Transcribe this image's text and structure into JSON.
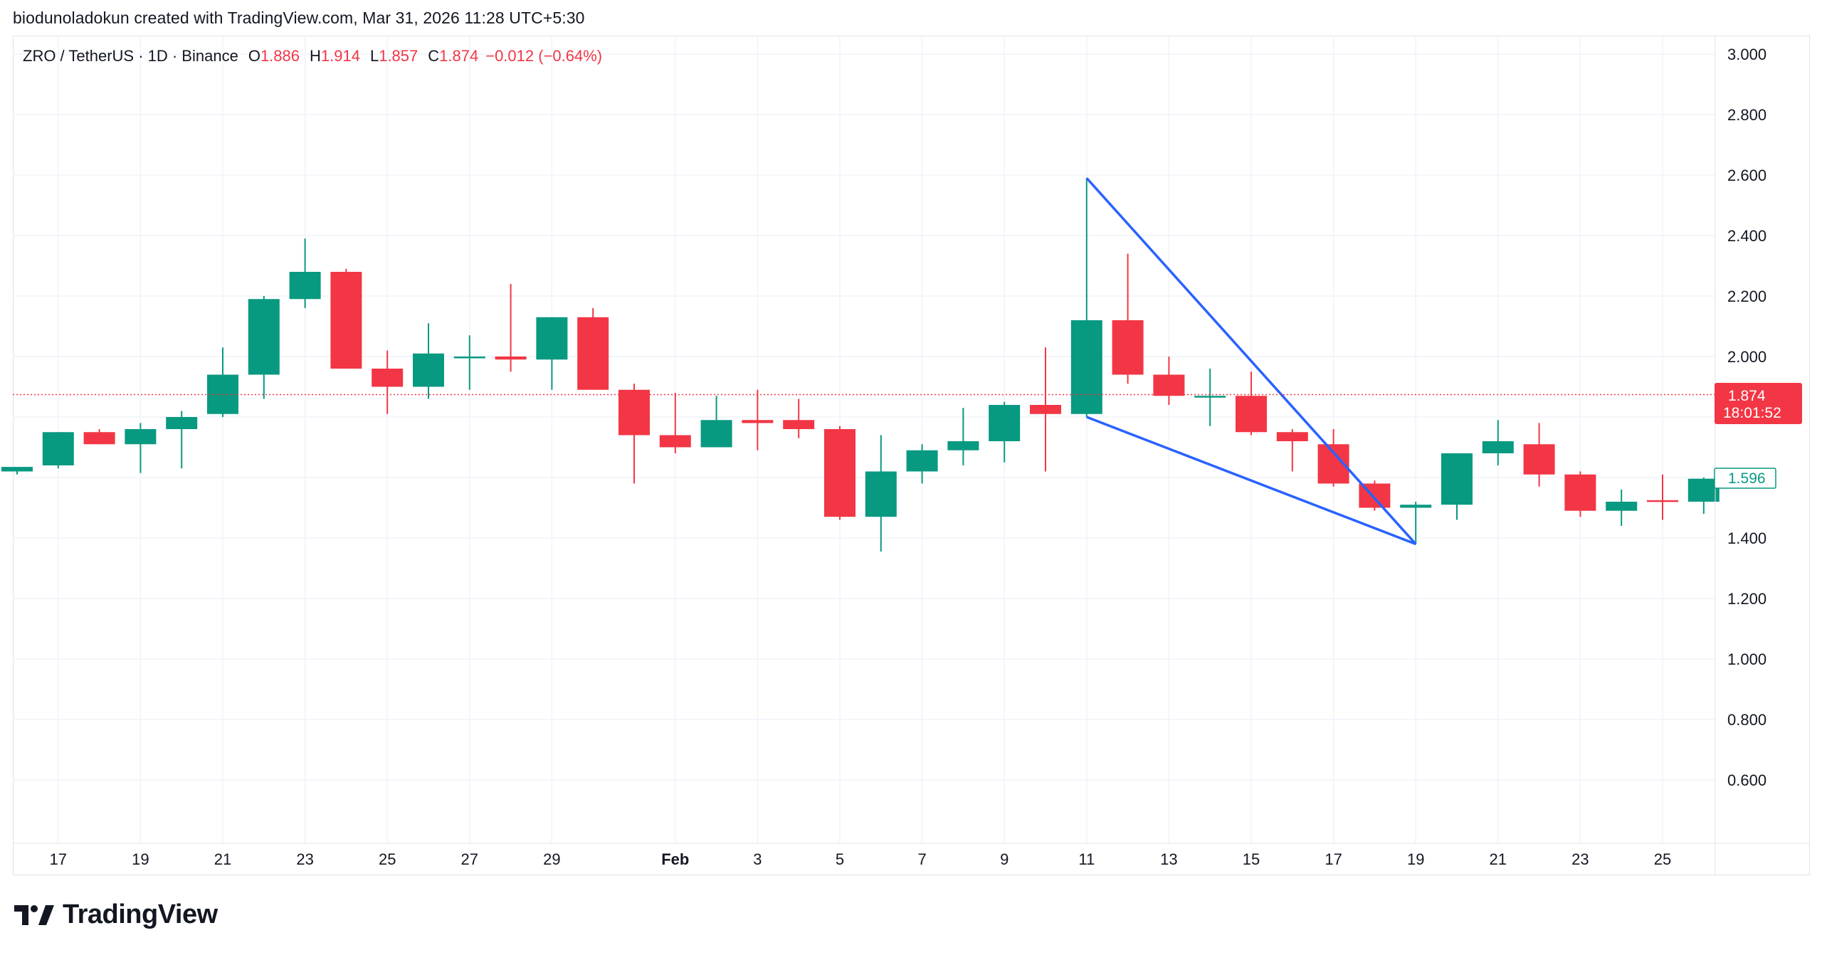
{
  "credit": "biodunoladokun created with TradingView.com, Mar 31, 2026 11:28 UTC+5:30",
  "legend": {
    "symbol": "ZRO / TetherUS · 1D · Binance",
    "open_label": "O",
    "open": "1.886",
    "high_label": "H",
    "high": "1.914",
    "low_label": "L",
    "low": "1.857",
    "close_label": "C",
    "close": "1.874",
    "change": "−0.012 (−0.64%)"
  },
  "price_tag": {
    "current": "1.874",
    "countdown": "18:01:52",
    "marker": "1.596"
  },
  "brand": {
    "name": "TradingView",
    "logo_icon": "tradingview-logo-icon"
  },
  "colors": {
    "up": "#089981",
    "down": "#f23645",
    "pattern_line": "#2962ff",
    "grid": "#f0f3fa",
    "text": "#131722"
  },
  "chart_data": {
    "type": "candlestick",
    "y_ticks": [
      "3.000",
      "2.800",
      "2.600",
      "2.400",
      "2.200",
      "2.000",
      "1.800",
      "1.600",
      "1.400",
      "1.200",
      "1.000",
      "0.800",
      "0.600"
    ],
    "x_ticks": [
      {
        "day": 1,
        "label": "17"
      },
      {
        "day": 3,
        "label": "19"
      },
      {
        "day": 5,
        "label": "21"
      },
      {
        "day": 7,
        "label": "23"
      },
      {
        "day": 9,
        "label": "25"
      },
      {
        "day": 11,
        "label": "27"
      },
      {
        "day": 13,
        "label": "29"
      },
      {
        "day": 16,
        "label": "Feb",
        "bold": true
      },
      {
        "day": 18,
        "label": "3"
      },
      {
        "day": 20,
        "label": "5"
      },
      {
        "day": 22,
        "label": "7"
      },
      {
        "day": 24,
        "label": "9"
      },
      {
        "day": 26,
        "label": "11"
      },
      {
        "day": 28,
        "label": "13"
      },
      {
        "day": 30,
        "label": "15"
      },
      {
        "day": 32,
        "label": "17"
      },
      {
        "day": 34,
        "label": "19"
      },
      {
        "day": 36,
        "label": "21"
      },
      {
        "day": 38,
        "label": "23"
      },
      {
        "day": 40,
        "label": "25"
      }
    ],
    "candles": [
      {
        "day": 0,
        "o": 1.62,
        "h": 1.63,
        "l": 1.61,
        "c": 1.635
      },
      {
        "day": 1,
        "o": 1.64,
        "h": 1.75,
        "l": 1.63,
        "c": 1.75
      },
      {
        "day": 2,
        "o": 1.75,
        "h": 1.76,
        "l": 1.71,
        "c": 1.71
      },
      {
        "day": 3,
        "o": 1.71,
        "h": 1.78,
        "l": 1.615,
        "c": 1.76
      },
      {
        "day": 4,
        "o": 1.76,
        "h": 1.82,
        "l": 1.63,
        "c": 1.8
      },
      {
        "day": 5,
        "o": 1.81,
        "h": 2.03,
        "l": 1.8,
        "c": 1.94
      },
      {
        "day": 6,
        "o": 1.94,
        "h": 2.2,
        "l": 1.86,
        "c": 2.19
      },
      {
        "day": 7,
        "o": 2.19,
        "h": 2.39,
        "l": 2.16,
        "c": 2.28
      },
      {
        "day": 8,
        "o": 2.28,
        "h": 2.29,
        "l": 1.96,
        "c": 1.96
      },
      {
        "day": 9,
        "o": 1.96,
        "h": 2.02,
        "l": 1.81,
        "c": 1.9
      },
      {
        "day": 10,
        "o": 1.9,
        "h": 2.11,
        "l": 1.86,
        "c": 2.01
      },
      {
        "day": 11,
        "o": 2.0,
        "h": 2.07,
        "l": 1.89,
        "c": 2.0
      },
      {
        "day": 12,
        "o": 2.0,
        "h": 2.24,
        "l": 1.95,
        "c": 1.99
      },
      {
        "day": 13,
        "o": 1.99,
        "h": 2.13,
        "l": 1.89,
        "c": 2.13
      },
      {
        "day": 14,
        "o": 2.13,
        "h": 2.16,
        "l": 1.89,
        "c": 1.89
      },
      {
        "day": 15,
        "o": 1.89,
        "h": 1.91,
        "l": 1.58,
        "c": 1.74
      },
      {
        "day": 16,
        "o": 1.74,
        "h": 1.88,
        "l": 1.68,
        "c": 1.7
      },
      {
        "day": 17,
        "o": 1.7,
        "h": 1.87,
        "l": 1.7,
        "c": 1.79
      },
      {
        "day": 18,
        "o": 1.79,
        "h": 1.89,
        "l": 1.69,
        "c": 1.78
      },
      {
        "day": 19,
        "o": 1.79,
        "h": 1.86,
        "l": 1.73,
        "c": 1.76
      },
      {
        "day": 20,
        "o": 1.76,
        "h": 1.77,
        "l": 1.46,
        "c": 1.47
      },
      {
        "day": 21,
        "o": 1.47,
        "h": 1.74,
        "l": 1.355,
        "c": 1.62
      },
      {
        "day": 22,
        "o": 1.62,
        "h": 1.71,
        "l": 1.58,
        "c": 1.69
      },
      {
        "day": 23,
        "o": 1.69,
        "h": 1.83,
        "l": 1.64,
        "c": 1.72
      },
      {
        "day": 24,
        "o": 1.72,
        "h": 1.85,
        "l": 1.65,
        "c": 1.84
      },
      {
        "day": 25,
        "o": 1.84,
        "h": 2.03,
        "l": 1.62,
        "c": 1.81
      },
      {
        "day": 26,
        "o": 1.81,
        "h": 2.59,
        "l": 1.8,
        "c": 2.12
      },
      {
        "day": 27,
        "o": 2.12,
        "h": 2.34,
        "l": 1.91,
        "c": 1.94
      },
      {
        "day": 28,
        "o": 1.94,
        "h": 2.0,
        "l": 1.84,
        "c": 1.87
      },
      {
        "day": 29,
        "o": 1.87,
        "h": 1.96,
        "l": 1.77,
        "c": 1.87
      },
      {
        "day": 30,
        "o": 1.87,
        "h": 1.95,
        "l": 1.74,
        "c": 1.75
      },
      {
        "day": 31,
        "o": 1.75,
        "h": 1.76,
        "l": 1.62,
        "c": 1.72
      },
      {
        "day": 32,
        "o": 1.71,
        "h": 1.76,
        "l": 1.57,
        "c": 1.58
      },
      {
        "day": 33,
        "o": 1.58,
        "h": 1.59,
        "l": 1.49,
        "c": 1.5
      },
      {
        "day": 34,
        "o": 1.5,
        "h": 1.52,
        "l": 1.38,
        "c": 1.51
      },
      {
        "day": 35,
        "o": 1.51,
        "h": 1.68,
        "l": 1.46,
        "c": 1.68
      },
      {
        "day": 36,
        "o": 1.68,
        "h": 1.79,
        "l": 1.64,
        "c": 1.72
      },
      {
        "day": 37,
        "o": 1.71,
        "h": 1.78,
        "l": 1.57,
        "c": 1.61
      },
      {
        "day": 38,
        "o": 1.61,
        "h": 1.62,
        "l": 1.47,
        "c": 1.49
      },
      {
        "day": 39,
        "o": 1.49,
        "h": 1.56,
        "l": 1.44,
        "c": 1.52
      },
      {
        "day": 40,
        "o": 1.525,
        "h": 1.61,
        "l": 1.46,
        "c": 1.52
      },
      {
        "day": 41,
        "o": 1.52,
        "h": 1.6,
        "l": 1.48,
        "c": 1.596
      }
    ],
    "current_price": 1.874,
    "marker_price": 1.596,
    "pattern": [
      {
        "day": 26,
        "price": 2.59
      },
      {
        "day": 34,
        "price": 1.38
      },
      {
        "day": 26,
        "price": 1.8
      }
    ],
    "y_range": [
      0.4,
      3.1
    ],
    "grid": true
  }
}
